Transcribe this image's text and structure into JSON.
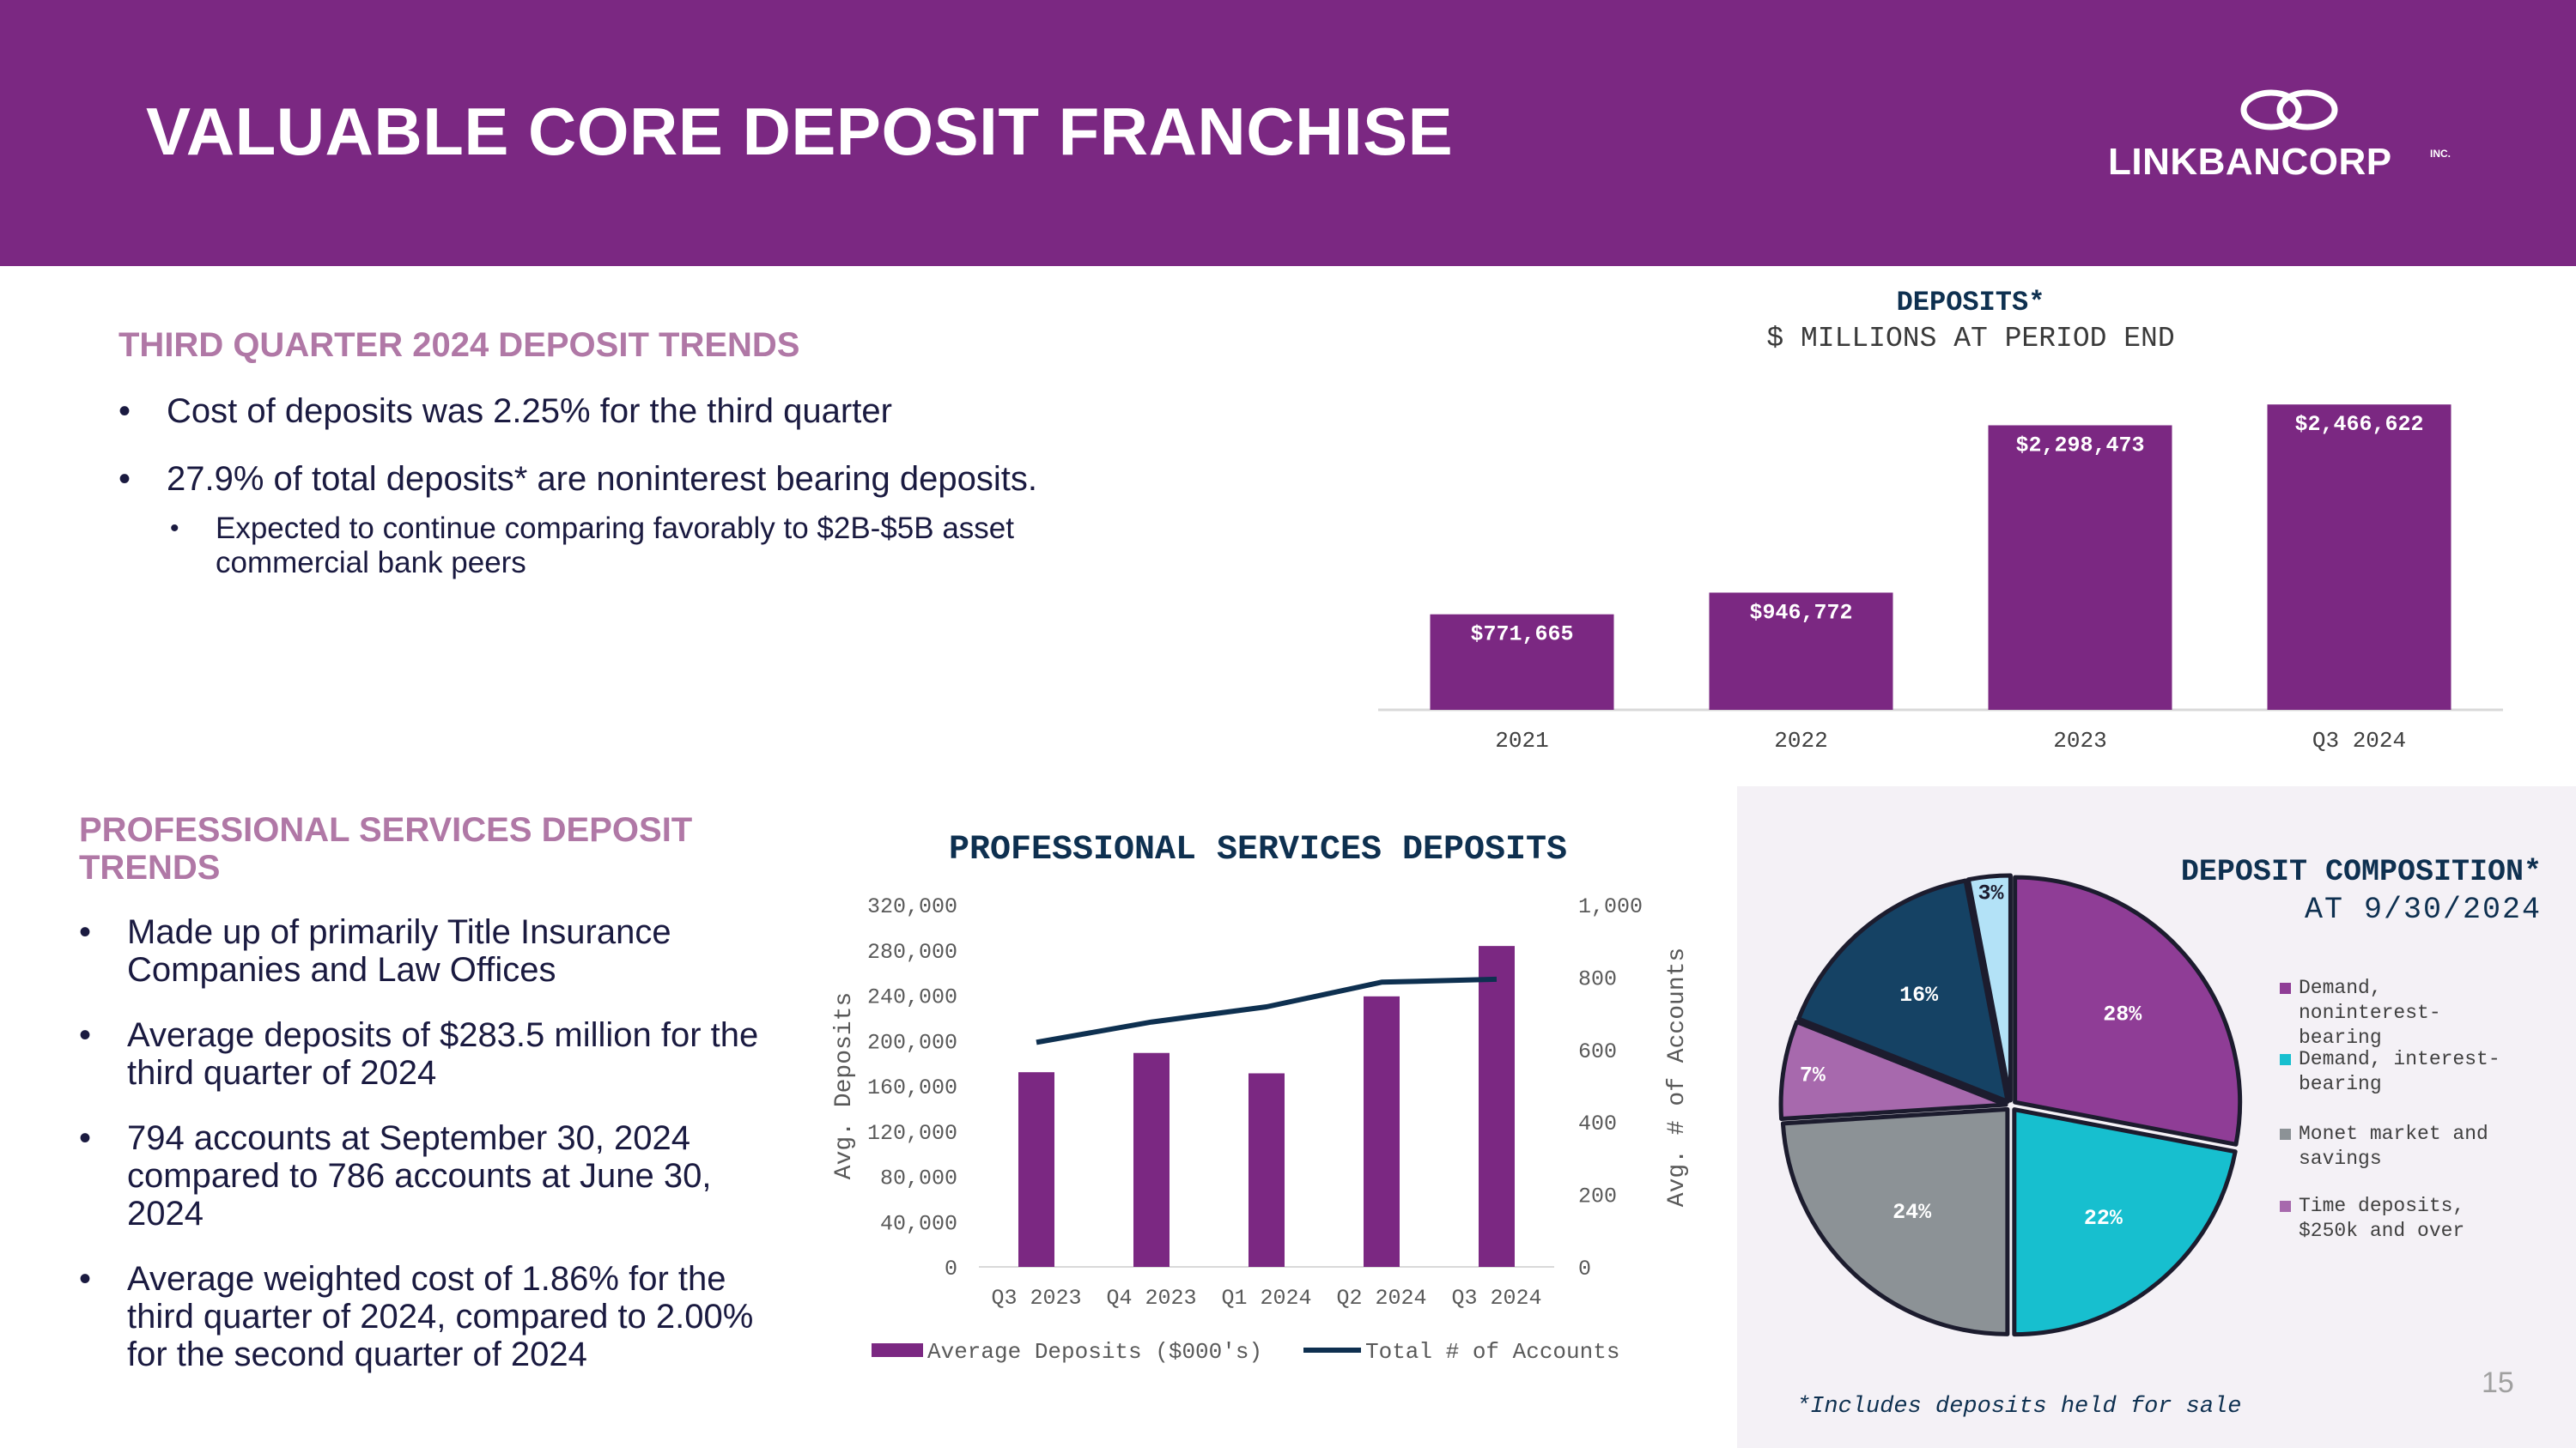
{
  "header": {
    "title": "VALUABLE CORE DEPOSIT FRANCHISE",
    "logo_text": "LINKBANCORP",
    "logo_inc": "INC."
  },
  "section1": {
    "heading": "THIRD QUARTER 2024 DEPOSIT TRENDS",
    "bullets": [
      "Cost of deposits was 2.25% for the third quarter",
      "27.9% of total deposits* are noninterest bearing deposits."
    ],
    "sub_bullets": [
      "Expected to continue comparing favorably to $2B-$5B asset commercial bank peers"
    ]
  },
  "section2": {
    "heading": "PROFESSIONAL SERVICES DEPOSIT TRENDS",
    "bullets": [
      "Made up of primarily Title Insurance Companies and Law Offices",
      "Average deposits of $283.5 million for the third quarter of 2024",
      "794 accounts at September 30, 2024 compared to 786 accounts at June 30, 2024",
      "Average weighted cost of 1.86% for the third quarter of 2024, compared to 2.00% for the second quarter of 2024"
    ]
  },
  "footnote": "*Includes deposits held for sale",
  "page_number": "15",
  "colors": {
    "brand_purple": "#7b2882",
    "heading_mauve": "#b078a6",
    "navy": "#0e3050",
    "teal": "#17bfcf",
    "gray": "#8c9296",
    "light_purple": "#a769ad",
    "light_blue": "#b3e2f7"
  },
  "chart_data": [
    {
      "type": "bar",
      "title": "DEPOSITS*",
      "subtitle": "$ MILLIONS AT PERIOD END",
      "categories": [
        "2021",
        "2022",
        "2023",
        "Q3 2024"
      ],
      "values": [
        771665,
        946772,
        2298473,
        2466622
      ],
      "data_labels": [
        "$771,665",
        "$946,772",
        "$2,298,473",
        "$2,466,622"
      ],
      "ylim": [
        0,
        2600000
      ],
      "grid": false,
      "legend": "none"
    },
    {
      "type": "bar",
      "title": "PROFESSIONAL SERVICES DEPOSITS",
      "categories": [
        "Q3 2023",
        "Q4 2023",
        "Q1 2024",
        "Q2 2024",
        "Q3 2024"
      ],
      "series": [
        {
          "name": "Average Deposits ($000's)",
          "type": "bar",
          "axis": "left",
          "values": [
            172000,
            189000,
            171000,
            239000,
            283500
          ]
        },
        {
          "name": "Total # of Accounts",
          "type": "line",
          "axis": "right",
          "values": [
            620,
            676,
            718,
            786,
            794
          ]
        }
      ],
      "ylabel": "Avg. Deposits",
      "y2label": "Avg. # of Accounts",
      "ylim": [
        0,
        320000
      ],
      "y2lim": [
        0,
        1000
      ],
      "yticks": [
        "0",
        "40,000",
        "80,000",
        "120,000",
        "160,000",
        "200,000",
        "240,000",
        "280,000",
        "320,000"
      ],
      "y2ticks": [
        "0",
        "200",
        "400",
        "600",
        "800",
        "1,000"
      ],
      "grid": false,
      "legend": "bottom"
    },
    {
      "type": "pie",
      "title": "DEPOSIT COMPOSITION*",
      "subtitle": "AT 9/30/2024",
      "slices": [
        {
          "name": "Demand, noninterest-bearing",
          "value": 28,
          "label": "28%",
          "color": "#8f3d96"
        },
        {
          "name": "Demand, interest-bearing",
          "value": 22,
          "label": "22%",
          "color": "#17bfcf"
        },
        {
          "name": "Monet market and savings",
          "value": 24,
          "label": "24%",
          "color": "#8c9296"
        },
        {
          "name": "Time deposits, $250k and over",
          "value": 7,
          "label": "7%",
          "color": "#a769ad"
        },
        {
          "name": "",
          "value": 16,
          "label": "16%",
          "color": "#154264"
        },
        {
          "name": "",
          "value": 3,
          "label": "3%",
          "color": "#b3e2f7"
        }
      ],
      "legend": [
        {
          "label_lines": [
            "Demand,",
            "noninterest-",
            "bearing"
          ],
          "color": "#8f3d96"
        },
        {
          "label_lines": [
            "Demand, interest-",
            "bearing"
          ],
          "color": "#17bfcf"
        },
        {
          "label_lines": [
            "Monet market and",
            "savings"
          ],
          "color": "#8c9296"
        },
        {
          "label_lines": [
            "Time deposits,",
            "$250k and over"
          ],
          "color": "#a769ad"
        }
      ],
      "legend_position": "right"
    }
  ]
}
